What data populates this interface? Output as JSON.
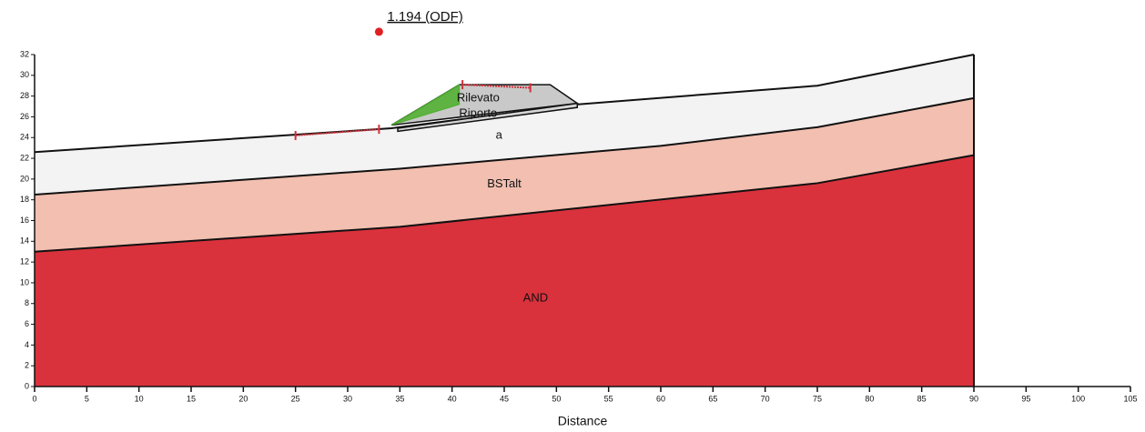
{
  "chart_data": {
    "type": "section",
    "x_label": "Distance",
    "xlim": [
      0,
      105
    ],
    "ylim": [
      0,
      32
    ],
    "xticks": [
      0,
      5,
      10,
      15,
      20,
      25,
      30,
      35,
      40,
      45,
      50,
      55,
      60,
      65,
      70,
      75,
      80,
      85,
      90,
      95,
      100,
      105
    ],
    "yticks": [
      0,
      2,
      4,
      6,
      8,
      10,
      12,
      14,
      16,
      18,
      20,
      22,
      24,
      26,
      28,
      30,
      32
    ],
    "layers": [
      {
        "name": "a",
        "color": "#f3f3f3",
        "x": [
          0,
          34.2,
          52,
          75,
          90
        ],
        "y": [
          22.6,
          24.9,
          27.2,
          29,
          32
        ]
      },
      {
        "name": "BSTalt",
        "color": "#f2bfb0",
        "x": [
          0,
          35,
          60,
          75,
          90
        ],
        "y": [
          18.5,
          21,
          23.2,
          25,
          27.8
        ]
      },
      {
        "name": "AND",
        "color": "#d9323c",
        "x": [
          0,
          35,
          75,
          90
        ],
        "y": [
          13,
          15.4,
          19.6,
          22.3
        ]
      }
    ],
    "fills": [
      {
        "name": "Rilevato",
        "color": "#c9c9c9",
        "x": [
          34.2,
          40.7,
          49.4,
          52,
          34.2
        ],
        "y": [
          25.2,
          29.1,
          29.1,
          27.3,
          25.2
        ]
      },
      {
        "name": "Riporto",
        "color": "#d6d6d6",
        "x": [
          34.8,
          52,
          52,
          34.8
        ],
        "y": [
          24.6,
          26.9,
          27.3,
          24.9
        ]
      }
    ],
    "slip_surface": {
      "color": "#4caf2a",
      "x": [
        34.2,
        40.7,
        40.7
      ],
      "y": [
        25.2,
        29.1,
        27.2
      ]
    },
    "entry_range": {
      "color": "#d0313a",
      "x": [
        25,
        33
      ],
      "y": [
        24.2,
        24.8
      ]
    },
    "exit_range": {
      "color": "#d0313a",
      "x": [
        41,
        47.5
      ],
      "y": [
        29.1,
        28.8
      ]
    },
    "critical_center": {
      "label": "1.194 (ODF)",
      "x": 33,
      "y": 34.2,
      "color": "#e02020"
    }
  }
}
